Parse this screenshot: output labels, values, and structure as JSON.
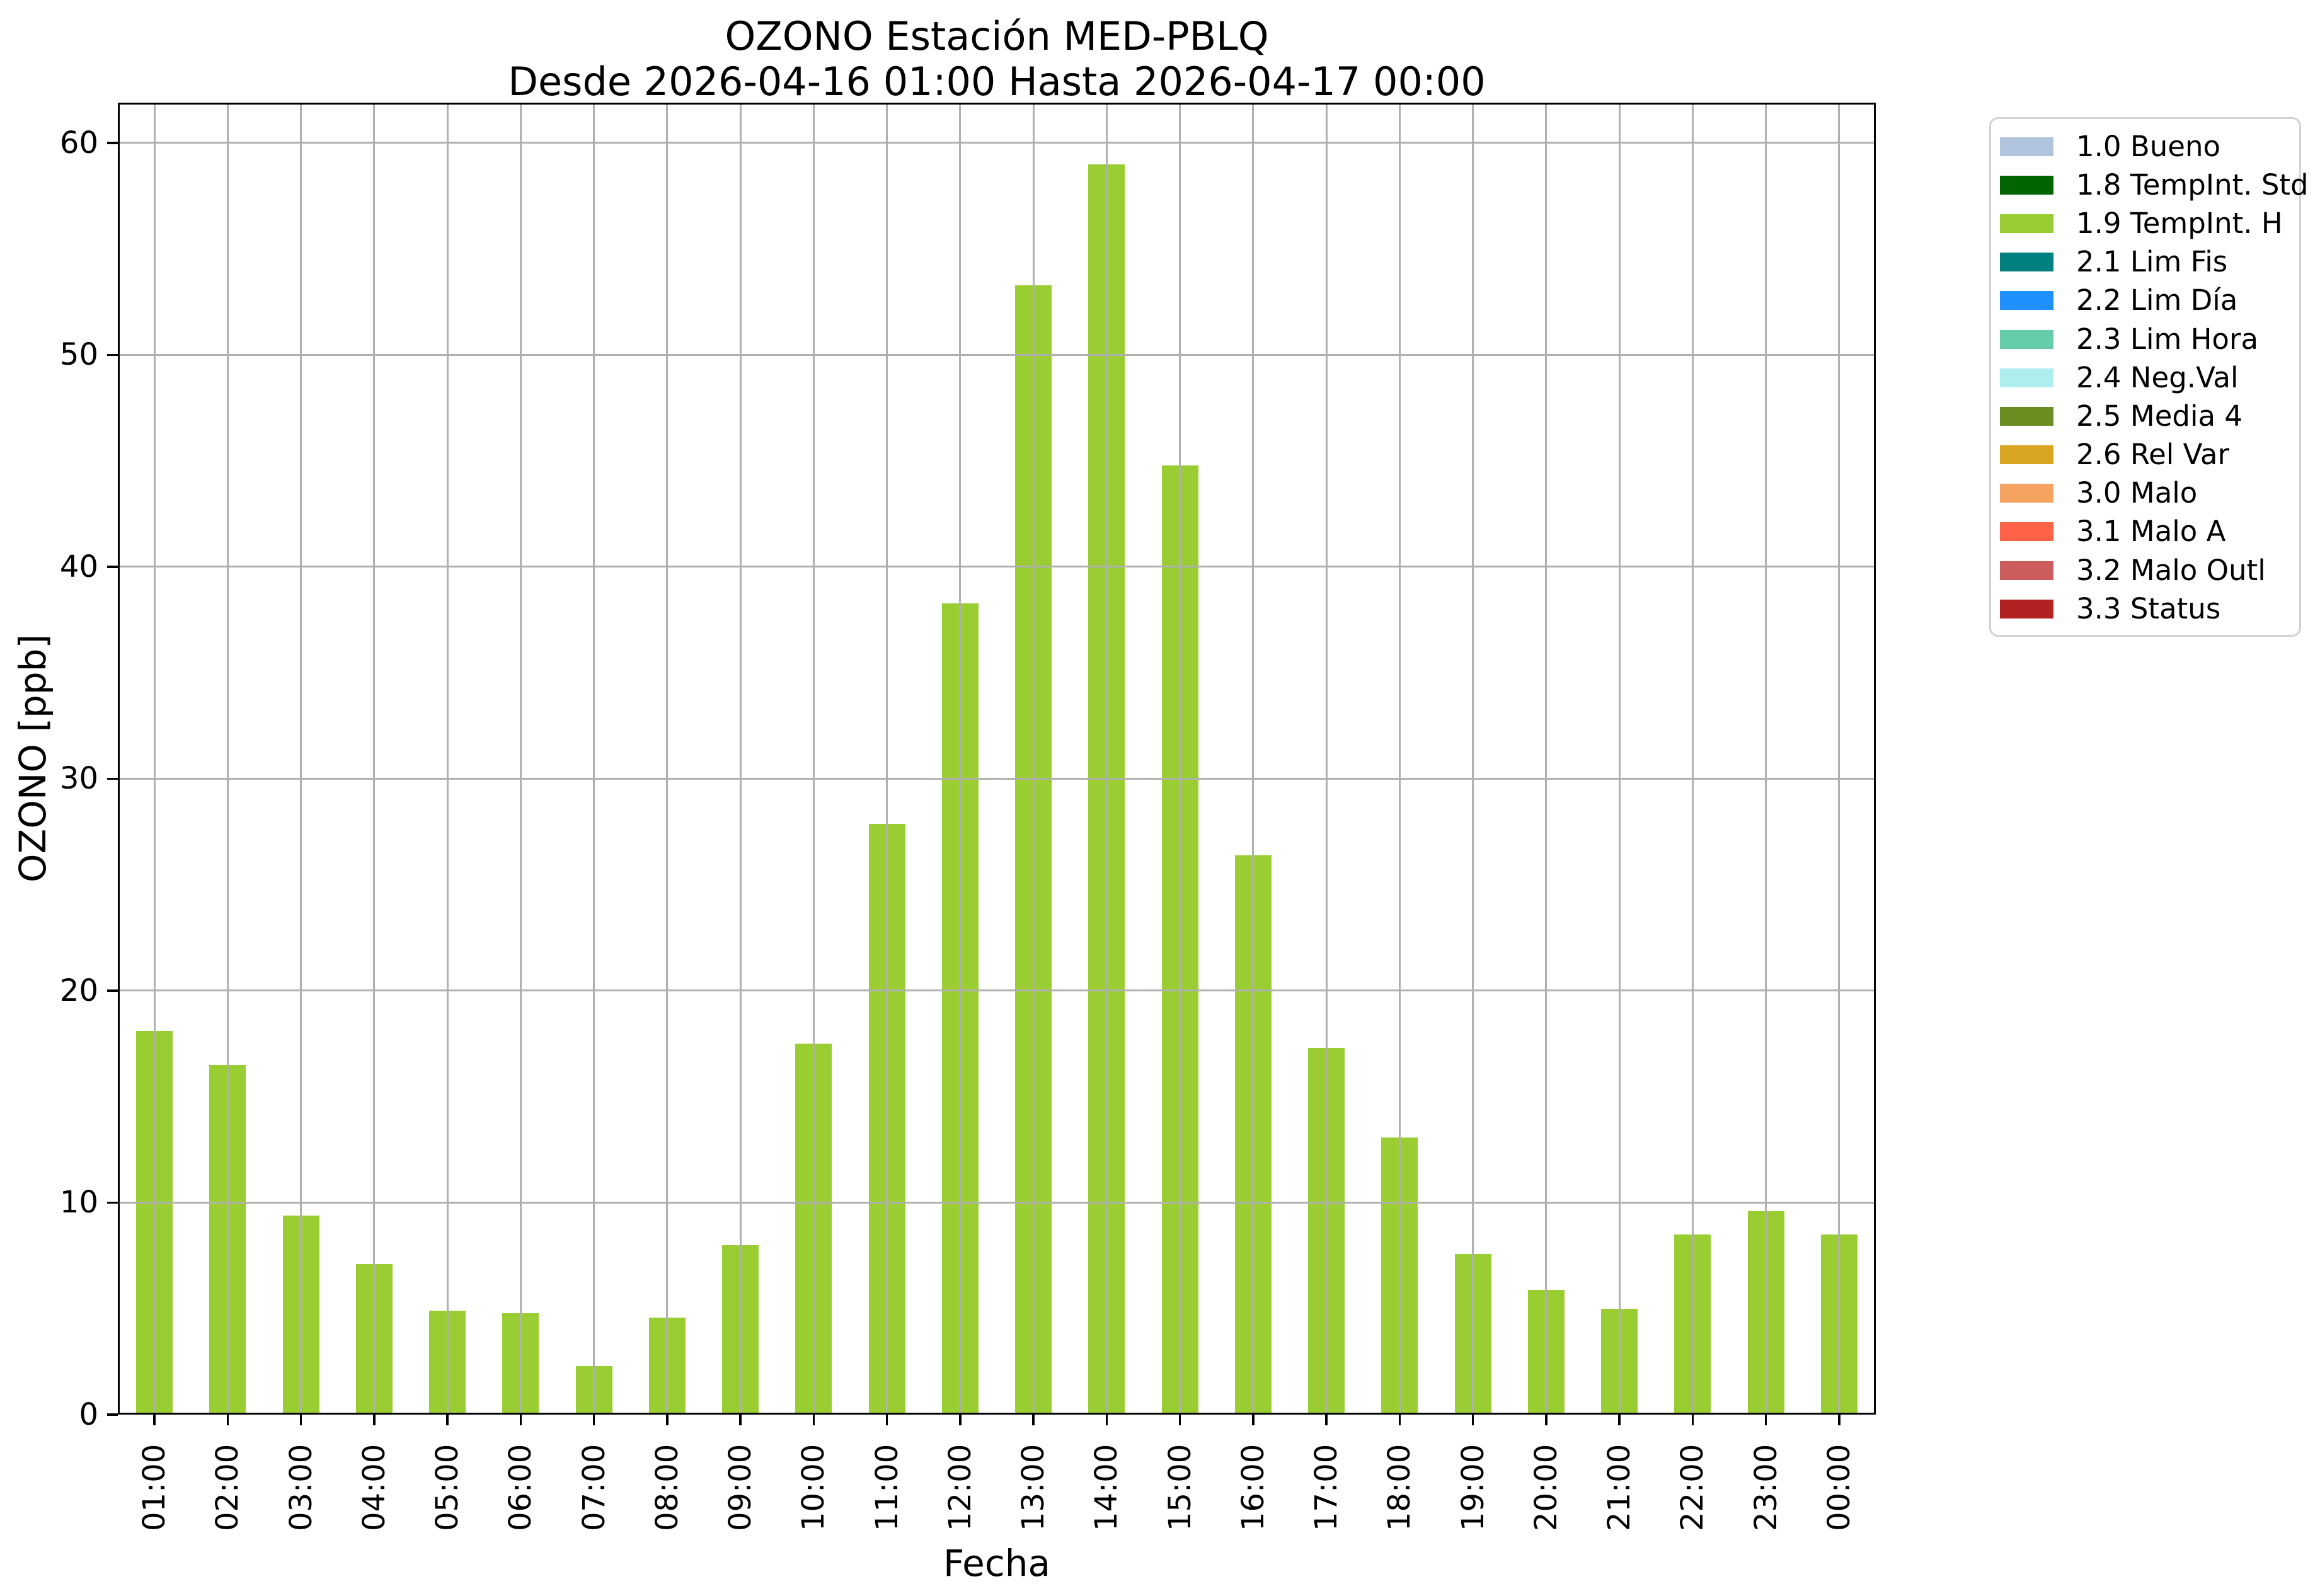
{
  "header": {
    "title": "OZONO Estación MED-PBLQ",
    "subtitle": "Desde 2026-04-16 01:00 Hasta 2026-04-17 00:00"
  },
  "chart_data": {
    "type": "bar",
    "title": "OZONO Estación MED-PBLQ",
    "subtitle": "Desde 2026-04-16 01:00 Hasta 2026-04-17 00:00",
    "xlabel": "Fecha",
    "ylabel": "OZONO [ppb]",
    "categories": [
      "01:00",
      "02:00",
      "03:00",
      "04:00",
      "05:00",
      "06:00",
      "07:00",
      "08:00",
      "09:00",
      "10:00",
      "11:00",
      "12:00",
      "13:00",
      "14:00",
      "15:00",
      "16:00",
      "17:00",
      "18:00",
      "19:00",
      "20:00",
      "21:00",
      "22:00",
      "23:00",
      "00:00"
    ],
    "values": [
      18.0,
      16.4,
      9.3,
      7.0,
      4.8,
      4.7,
      2.2,
      4.5,
      7.9,
      17.4,
      27.8,
      38.2,
      53.2,
      58.9,
      44.7,
      26.3,
      17.2,
      13.0,
      7.5,
      5.8,
      4.9,
      8.4,
      9.5,
      8.4
    ],
    "bar_color": "#9ACD32",
    "ylim": [
      0,
      61.9
    ],
    "yticks": [
      0,
      10,
      20,
      30,
      40,
      50,
      60
    ],
    "grid": true,
    "grid_color": "#b0b0b0",
    "x_tick_rotation": 90,
    "legend_position": "outside-upper-right",
    "legend_entries": [
      {
        "label": "1.0 Bueno",
        "color": "#B0C4DE"
      },
      {
        "label": "1.8 TempInt. Std",
        "color": "#006400"
      },
      {
        "label": "1.9 TempInt. H",
        "color": "#9ACD32"
      },
      {
        "label": "2.1 Lim Fis",
        "color": "#008080"
      },
      {
        "label": "2.2 Lim Día",
        "color": "#1E90FF"
      },
      {
        "label": "2.3 Lim Hora",
        "color": "#66CDAA"
      },
      {
        "label": "2.4 Neg.Val",
        "color": "#AFEEEE"
      },
      {
        "label": "2.5 Media 4",
        "color": "#6B8E23"
      },
      {
        "label": "2.6 Rel Var",
        "color": "#DAA520"
      },
      {
        "label": "3.0 Malo",
        "color": "#F4A460"
      },
      {
        "label": "3.1 Malo A",
        "color": "#FF6347"
      },
      {
        "label": "3.2 Malo Outl",
        "color": "#CD5C5C"
      },
      {
        "label": "3.3 Status",
        "color": "#B22222"
      }
    ]
  }
}
